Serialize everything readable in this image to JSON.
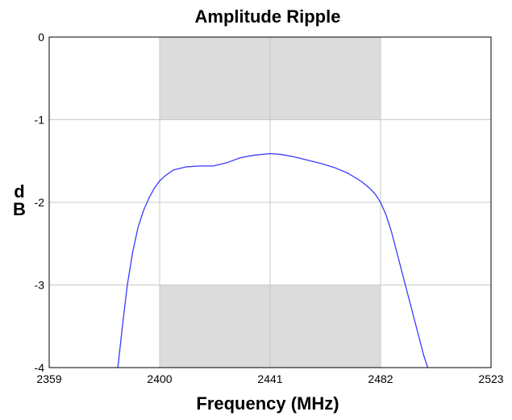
{
  "chart_data": {
    "type": "line",
    "title": "Amplitude Ripple",
    "xlabel": "Frequency (MHz)",
    "ylabel_top": "d",
    "ylabel_bottom": "B",
    "xlim": [
      2359,
      2523
    ],
    "ylim": [
      -4,
      0
    ],
    "xticks": [
      2359,
      2400,
      2441,
      2482,
      2523
    ],
    "yticks": [
      0,
      -1,
      -2,
      -3,
      -4
    ],
    "grid": true,
    "shaded_regions": [
      {
        "x": [
          2400,
          2482
        ],
        "y": [
          -1,
          0
        ]
      },
      {
        "x": [
          2400,
          2482
        ],
        "y": [
          -4,
          -3
        ]
      }
    ],
    "colors": {
      "line": "#3a3aff",
      "shade": "#dcdcdc",
      "grid": "#c8c8c8",
      "frame": "#000000"
    },
    "series": [
      {
        "x": [
          2384.5,
          2386,
          2388,
          2390,
          2392,
          2394,
          2396,
          2398,
          2400,
          2402,
          2405,
          2410,
          2415,
          2420,
          2425,
          2430,
          2435,
          2441,
          2445,
          2450,
          2455,
          2460,
          2465,
          2470,
          2475,
          2478,
          2480,
          2482,
          2484,
          2486,
          2488,
          2490,
          2492,
          2494,
          2496,
          2498,
          2499.5
        ],
        "y": [
          -4.0,
          -3.55,
          -3.0,
          -2.6,
          -2.3,
          -2.1,
          -1.95,
          -1.83,
          -1.74,
          -1.68,
          -1.61,
          -1.57,
          -1.56,
          -1.56,
          -1.52,
          -1.46,
          -1.43,
          -1.41,
          -1.42,
          -1.45,
          -1.49,
          -1.53,
          -1.58,
          -1.65,
          -1.75,
          -1.83,
          -1.9,
          -2.0,
          -2.15,
          -2.35,
          -2.6,
          -2.85,
          -3.1,
          -3.35,
          -3.6,
          -3.85,
          -4.0
        ]
      }
    ]
  }
}
